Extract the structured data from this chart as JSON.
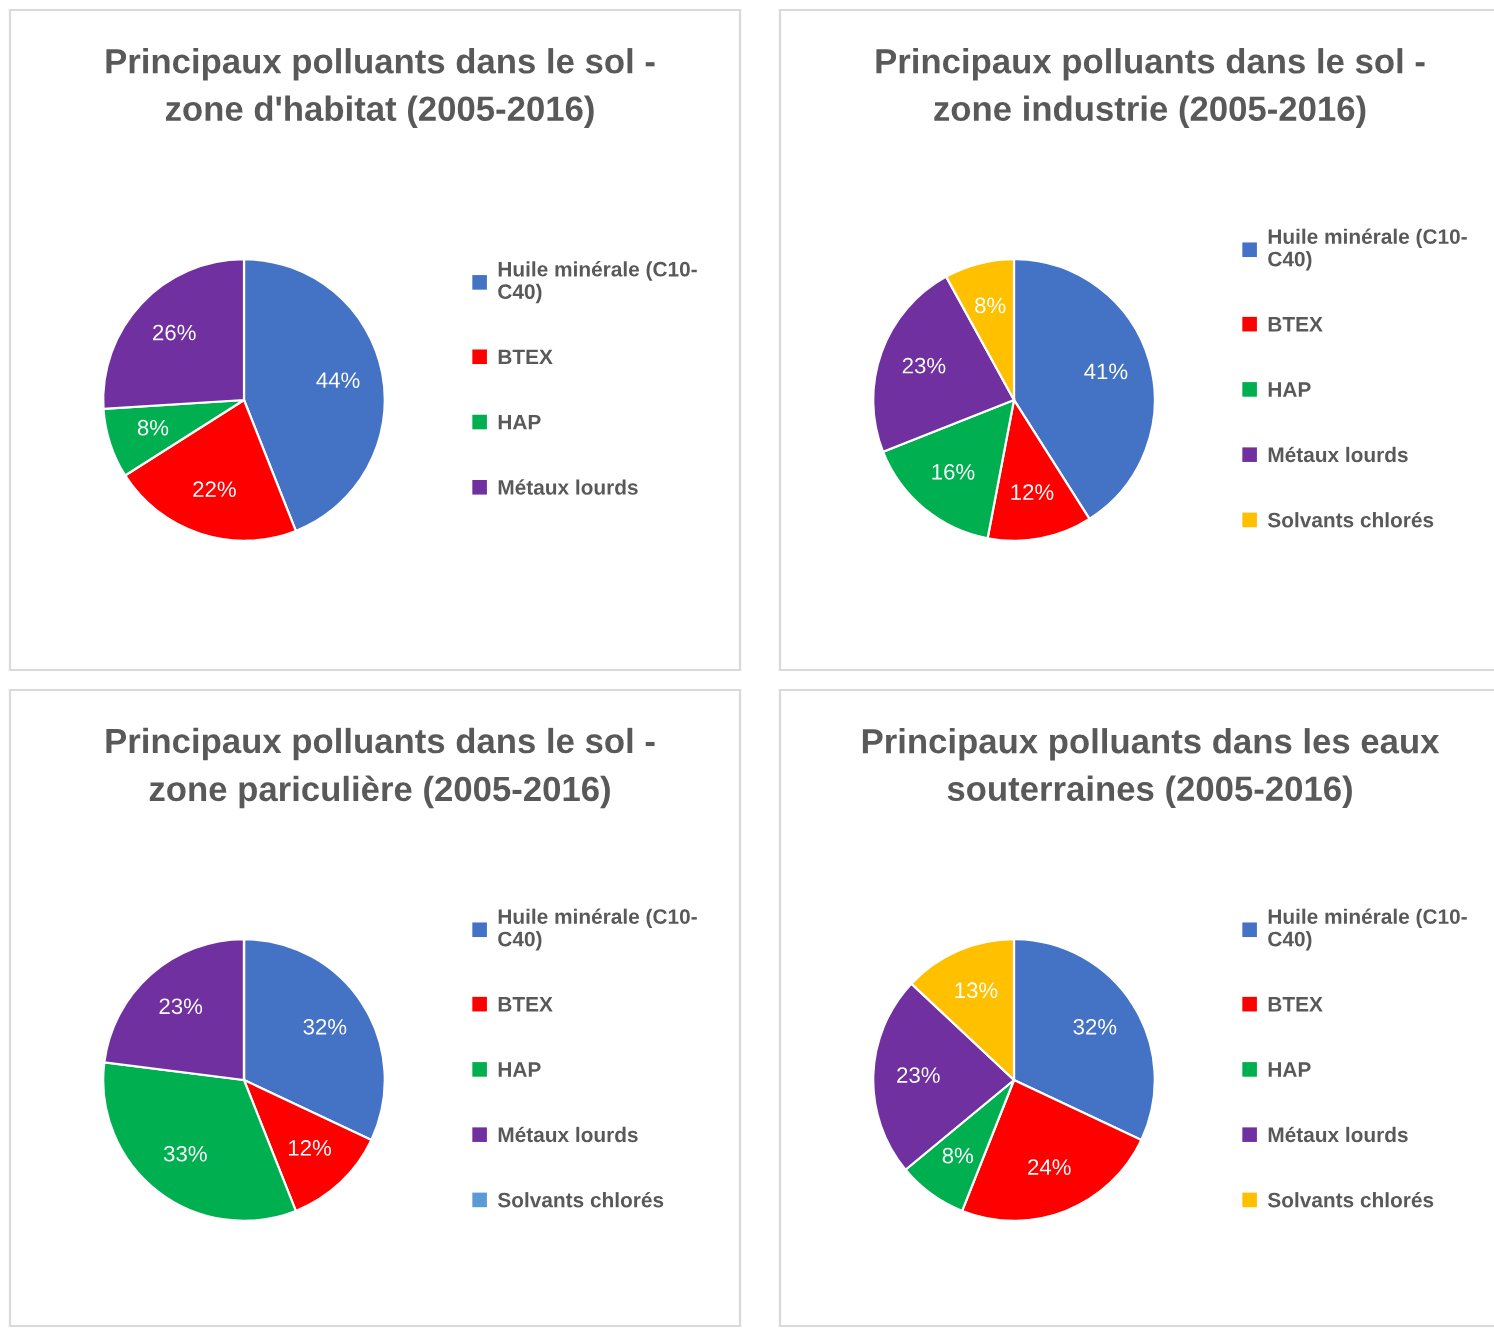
{
  "chart_data": [
    {
      "type": "pie",
      "title": "Principaux polluants dans le sol -\nzone d'habitat (2005-2016)",
      "categories": [
        "Huile minérale (C10-\nC40)",
        "BTEX",
        "HAP",
        "Métaux lourds"
      ],
      "values": [
        44,
        22,
        8,
        26
      ],
      "colors": [
        "#4472c4",
        "#ff0000",
        "#00b050",
        "#7030a0"
      ],
      "value_labels": [
        "44%",
        "22%",
        "8%",
        "26%"
      ],
      "legend": "right"
    },
    {
      "type": "pie",
      "title": "Principaux polluants dans le sol -\nzone industrie (2005-2016)",
      "categories": [
        "Huile minérale (C10-\nC40)",
        "BTEX",
        "HAP",
        "Métaux lourds",
        "Solvants chlorés"
      ],
      "values": [
        41,
        12,
        16,
        23,
        8
      ],
      "colors": [
        "#4472c4",
        "#ff0000",
        "#00b050",
        "#7030a0",
        "#ffc000"
      ],
      "value_labels": [
        "41%",
        "12%",
        "16%",
        "23%",
        "8%"
      ],
      "legend": "right"
    },
    {
      "type": "pie",
      "title": "Principaux polluants dans le sol -\nzone pariculière (2005-2016)",
      "categories": [
        "Huile minérale (C10-\nC40)",
        "BTEX",
        "HAP",
        "Métaux lourds",
        "Solvants chlorés"
      ],
      "values": [
        32,
        12,
        33,
        23,
        0
      ],
      "colors": [
        "#4472c4",
        "#ff0000",
        "#00b050",
        "#7030a0",
        "#5b9bd5"
      ],
      "value_labels": [
        "32%",
        "12%",
        "33%",
        "23%",
        null
      ],
      "legend": "right"
    },
    {
      "type": "pie",
      "title": "Principaux polluants dans les eaux\nsouterraines (2005-2016)",
      "categories": [
        "Huile minérale (C10-\nC40)",
        "BTEX",
        "HAP",
        "Métaux lourds",
        "Solvants chlorés"
      ],
      "values": [
        32,
        24,
        8,
        23,
        13
      ],
      "colors": [
        "#4472c4",
        "#ff0000",
        "#00b050",
        "#7030a0",
        "#ffc000"
      ],
      "value_labels": [
        "32%",
        "24%",
        "8%",
        "23%",
        "13%"
      ],
      "legend": "right"
    }
  ]
}
